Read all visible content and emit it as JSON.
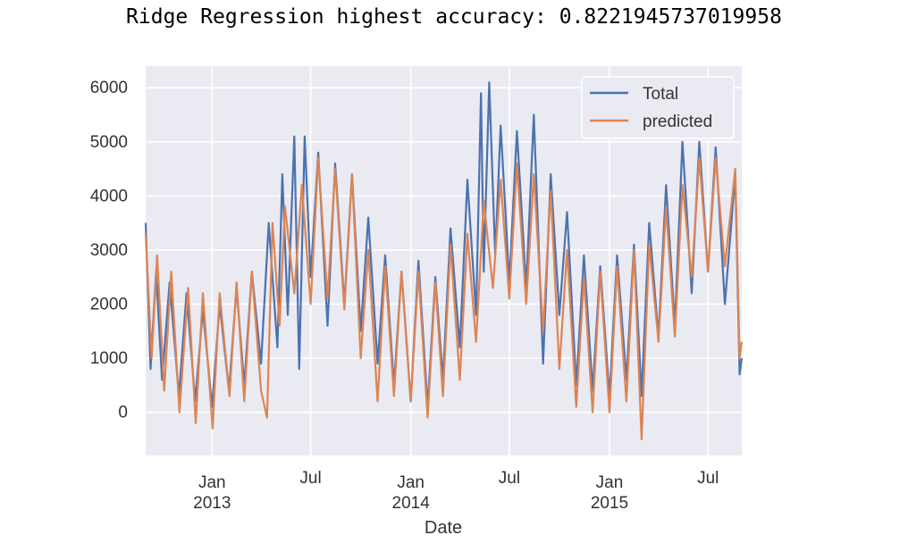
{
  "output": {
    "text": "Ridge Regression highest accuracy: 0.8221945737019958"
  },
  "chart_data": {
    "type": "line",
    "title": "",
    "xlabel": "Date",
    "ylabel": "",
    "x_range": [
      "2012-09-01",
      "2015-09-01"
    ],
    "ylim": [
      -800,
      6400
    ],
    "grid": true,
    "legend_placement": "top-right",
    "yticks": [
      "6000",
      "5000",
      "4000",
      "3000",
      "2000",
      "1000",
      "0"
    ],
    "xticks": [
      {
        "date": "2013-01-01",
        "label": "Jan",
        "label2": "2013"
      },
      {
        "date": "2013-07-01",
        "label": "Jul",
        "label2": ""
      },
      {
        "date": "2014-01-01",
        "label": "Jan",
        "label2": "2014"
      },
      {
        "date": "2014-07-01",
        "label": "Jul",
        "label2": ""
      },
      {
        "date": "2015-01-01",
        "label": "Jan",
        "label2": "2015"
      },
      {
        "date": "2015-07-01",
        "label": "Jul",
        "label2": ""
      }
    ],
    "series": [
      {
        "name": "Total",
        "color": "#4c72b0",
        "points": [
          [
            "2012-09-01",
            3500
          ],
          [
            "2012-09-10",
            800
          ],
          [
            "2012-09-20",
            2600
          ],
          [
            "2012-10-01",
            600
          ],
          [
            "2012-10-15",
            2400
          ],
          [
            "2012-11-01",
            300
          ],
          [
            "2012-11-15",
            2200
          ],
          [
            "2012-12-01",
            200
          ],
          [
            "2012-12-15",
            1900
          ],
          [
            "2013-01-01",
            100
          ],
          [
            "2013-01-15",
            2000
          ],
          [
            "2013-02-01",
            400
          ],
          [
            "2013-02-15",
            2300
          ],
          [
            "2013-03-01",
            500
          ],
          [
            "2013-03-15",
            2600
          ],
          [
            "2013-04-01",
            900
          ],
          [
            "2013-04-15",
            3500
          ],
          [
            "2013-05-01",
            1200
          ],
          [
            "2013-05-10",
            4400
          ],
          [
            "2013-05-20",
            1800
          ],
          [
            "2013-06-01",
            5100
          ],
          [
            "2013-06-10",
            800
          ],
          [
            "2013-06-20",
            5100
          ],
          [
            "2013-07-01",
            2500
          ],
          [
            "2013-07-15",
            4800
          ],
          [
            "2013-08-01",
            1600
          ],
          [
            "2013-08-15",
            4600
          ],
          [
            "2013-09-01",
            2000
          ],
          [
            "2013-09-15",
            4400
          ],
          [
            "2013-10-01",
            1500
          ],
          [
            "2013-10-15",
            3600
          ],
          [
            "2013-11-01",
            900
          ],
          [
            "2013-11-15",
            2900
          ],
          [
            "2013-12-01",
            500
          ],
          [
            "2013-12-15",
            2600
          ],
          [
            "2014-01-01",
            200
          ],
          [
            "2014-01-15",
            2800
          ],
          [
            "2014-02-01",
            100
          ],
          [
            "2014-02-15",
            2500
          ],
          [
            "2014-03-01",
            600
          ],
          [
            "2014-03-15",
            3400
          ],
          [
            "2014-04-01",
            1200
          ],
          [
            "2014-04-15",
            4300
          ],
          [
            "2014-05-01",
            1800
          ],
          [
            "2014-05-10",
            5900
          ],
          [
            "2014-05-15",
            2600
          ],
          [
            "2014-05-25",
            6100
          ],
          [
            "2014-06-05",
            2900
          ],
          [
            "2014-06-15",
            5300
          ],
          [
            "2014-07-01",
            2400
          ],
          [
            "2014-07-15",
            5200
          ],
          [
            "2014-08-01",
            2300
          ],
          [
            "2014-08-15",
            5500
          ],
          [
            "2014-09-01",
            900
          ],
          [
            "2014-09-15",
            4400
          ],
          [
            "2014-10-01",
            1800
          ],
          [
            "2014-10-15",
            3700
          ],
          [
            "2014-11-01",
            500
          ],
          [
            "2014-11-15",
            2900
          ],
          [
            "2014-12-01",
            400
          ],
          [
            "2014-12-15",
            2700
          ],
          [
            "2015-01-01",
            300
          ],
          [
            "2015-01-15",
            2900
          ],
          [
            "2015-02-01",
            600
          ],
          [
            "2015-02-15",
            3100
          ],
          [
            "2015-03-01",
            300
          ],
          [
            "2015-03-15",
            3500
          ],
          [
            "2015-04-01",
            1400
          ],
          [
            "2015-04-15",
            4200
          ],
          [
            "2015-05-01",
            1600
          ],
          [
            "2015-05-15",
            5000
          ],
          [
            "2015-06-01",
            2200
          ],
          [
            "2015-06-15",
            5000
          ],
          [
            "2015-07-01",
            2600
          ],
          [
            "2015-07-15",
            4900
          ],
          [
            "2015-08-01",
            2000
          ],
          [
            "2015-08-20",
            4400
          ],
          [
            "2015-08-28",
            700
          ],
          [
            "2015-09-01",
            1000
          ]
        ]
      },
      {
        "name": "predicted",
        "color": "#dd8452",
        "points": [
          [
            "2012-09-01",
            3300
          ],
          [
            "2012-09-12",
            1000
          ],
          [
            "2012-09-22",
            2900
          ],
          [
            "2012-10-05",
            400
          ],
          [
            "2012-10-18",
            2600
          ],
          [
            "2012-11-02",
            0
          ],
          [
            "2012-11-18",
            2300
          ],
          [
            "2012-12-02",
            -200
          ],
          [
            "2012-12-15",
            2200
          ],
          [
            "2013-01-02",
            -300
          ],
          [
            "2013-01-15",
            2200
          ],
          [
            "2013-02-02",
            300
          ],
          [
            "2013-02-15",
            2400
          ],
          [
            "2013-03-01",
            200
          ],
          [
            "2013-03-15",
            2600
          ],
          [
            "2013-04-01",
            400
          ],
          [
            "2013-04-12",
            -100
          ],
          [
            "2013-04-22",
            3500
          ],
          [
            "2013-05-05",
            1600
          ],
          [
            "2013-05-15",
            3800
          ],
          [
            "2013-06-01",
            2200
          ],
          [
            "2013-06-15",
            4200
          ],
          [
            "2013-07-01",
            2000
          ],
          [
            "2013-07-15",
            4700
          ],
          [
            "2013-08-01",
            2100
          ],
          [
            "2013-08-15",
            4500
          ],
          [
            "2013-09-01",
            1900
          ],
          [
            "2013-09-15",
            4400
          ],
          [
            "2013-10-01",
            1000
          ],
          [
            "2013-10-15",
            3000
          ],
          [
            "2013-11-01",
            200
          ],
          [
            "2013-11-15",
            2700
          ],
          [
            "2013-12-01",
            300
          ],
          [
            "2013-12-15",
            2600
          ],
          [
            "2014-01-01",
            200
          ],
          [
            "2014-01-15",
            2600
          ],
          [
            "2014-02-01",
            -100
          ],
          [
            "2014-02-15",
            2400
          ],
          [
            "2014-03-01",
            300
          ],
          [
            "2014-03-15",
            3100
          ],
          [
            "2014-04-01",
            600
          ],
          [
            "2014-04-15",
            3300
          ],
          [
            "2014-05-01",
            1300
          ],
          [
            "2014-05-15",
            3900
          ],
          [
            "2014-06-01",
            2300
          ],
          [
            "2014-06-15",
            4300
          ],
          [
            "2014-07-01",
            2100
          ],
          [
            "2014-07-15",
            4600
          ],
          [
            "2014-08-01",
            2000
          ],
          [
            "2014-08-15",
            4400
          ],
          [
            "2014-09-01",
            1500
          ],
          [
            "2014-09-15",
            4100
          ],
          [
            "2014-10-01",
            800
          ],
          [
            "2014-10-15",
            3000
          ],
          [
            "2014-11-01",
            100
          ],
          [
            "2014-11-15",
            2500
          ],
          [
            "2014-12-01",
            0
          ],
          [
            "2014-12-15",
            2600
          ],
          [
            "2015-01-01",
            0
          ],
          [
            "2015-01-15",
            2700
          ],
          [
            "2015-02-01",
            200
          ],
          [
            "2015-02-15",
            3000
          ],
          [
            "2015-03-01",
            -500
          ],
          [
            "2015-03-15",
            3100
          ],
          [
            "2015-04-01",
            1300
          ],
          [
            "2015-04-15",
            3800
          ],
          [
            "2015-05-01",
            1400
          ],
          [
            "2015-05-15",
            4200
          ],
          [
            "2015-06-01",
            2500
          ],
          [
            "2015-06-15",
            4700
          ],
          [
            "2015-07-01",
            2600
          ],
          [
            "2015-07-15",
            4700
          ],
          [
            "2015-08-01",
            2700
          ],
          [
            "2015-08-20",
            4500
          ],
          [
            "2015-08-28",
            1000
          ],
          [
            "2015-09-01",
            1300
          ]
        ]
      }
    ]
  }
}
